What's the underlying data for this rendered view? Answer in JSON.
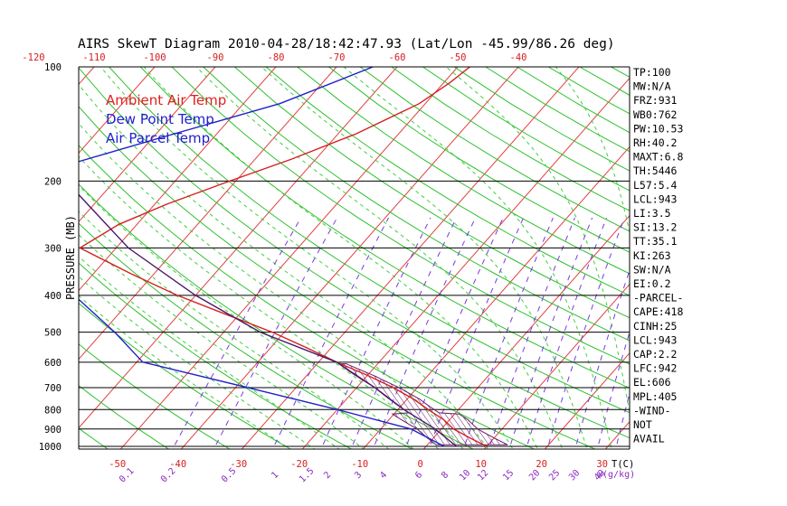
{
  "chart_data": {
    "type": "line",
    "title": "AIRS SkewT Diagram 2010-04-28/18:42:47.93 (Lat/Lon -45.99/86.26 deg)",
    "ylabel": "PRESSURE (MB)",
    "y_scale": "log",
    "ylim": [
      1050,
      100
    ],
    "pressure_ticks": [
      100,
      200,
      300,
      400,
      500,
      600,
      700,
      800,
      900,
      1000
    ],
    "top_temp_ticks": [
      "-120",
      "-110",
      "-100",
      "-90",
      "-80",
      "-70",
      "-60",
      "-50",
      "-40"
    ],
    "bottom_temp_ticks": [
      "-50",
      "-40",
      "-30",
      "-20",
      "-10",
      "0",
      "10",
      "20",
      "30"
    ],
    "bottom_temp_unit": "T(C)",
    "mixing_ratio_ticks": [
      "0.1",
      "0.2",
      "0.5",
      "1",
      "1.5",
      "2",
      "3",
      "4",
      "6",
      "8",
      "10",
      "12",
      "15",
      "20",
      "25",
      "30",
      "40"
    ],
    "mixing_ratio_unit": "w(g/kg)",
    "legend": [
      {
        "name": "Ambient Air Temp",
        "color": "#e02020"
      },
      {
        "name": "Dew Point Temp",
        "color": "#2020d0"
      },
      {
        "name": "Air Parcel Temp",
        "color": "#2020d0"
      }
    ],
    "series": [
      {
        "name": "Ambient Air Temp",
        "color": "#d42020",
        "points": [
          {
            "p": 100,
            "t": -48
          },
          {
            "p": 110,
            "t": -49
          },
          {
            "p": 125,
            "t": -51
          },
          {
            "p": 150,
            "t": -57
          },
          {
            "p": 175,
            "t": -64
          },
          {
            "p": 200,
            "t": -71
          },
          {
            "p": 230,
            "t": -78
          },
          {
            "p": 260,
            "t": -83
          },
          {
            "p": 300,
            "t": -86
          },
          {
            "p": 350,
            "t": -74
          },
          {
            "p": 400,
            "t": -63
          },
          {
            "p": 450,
            "t": -52
          },
          {
            "p": 500,
            "t": -42
          },
          {
            "p": 550,
            "t": -34
          },
          {
            "p": 600,
            "t": -27
          },
          {
            "p": 650,
            "t": -20
          },
          {
            "p": 700,
            "t": -14
          },
          {
            "p": 750,
            "t": -9
          },
          {
            "p": 800,
            "t": -5
          },
          {
            "p": 850,
            "t": -1
          },
          {
            "p": 900,
            "t": 2
          },
          {
            "p": 950,
            "t": 6
          },
          {
            "p": 1000,
            "t": 10
          }
        ]
      },
      {
        "name": "Dew Point Temp",
        "color": "#2020c8",
        "points": [
          {
            "p": 100,
            "t": -64
          },
          {
            "p": 125,
            "t": -74
          },
          {
            "p": 150,
            "t": -87
          },
          {
            "p": 200,
            "t": -107
          },
          {
            "p": 250,
            "t": -103
          },
          {
            "p": 300,
            "t": -95
          },
          {
            "p": 400,
            "t": -80
          },
          {
            "p": 500,
            "t": -68
          },
          {
            "p": 600,
            "t": -59
          },
          {
            "p": 700,
            "t": -38
          },
          {
            "p": 800,
            "t": -20
          },
          {
            "p": 900,
            "t": -5
          },
          {
            "p": 1000,
            "t": 3
          }
        ]
      },
      {
        "name": "Air Parcel Temp",
        "color": "#4a1a6a",
        "points": [
          {
            "p": 100,
            "t": -125
          },
          {
            "p": 150,
            "t": -110
          },
          {
            "p": 200,
            "t": -98
          },
          {
            "p": 250,
            "t": -87
          },
          {
            "p": 300,
            "t": -78
          },
          {
            "p": 400,
            "t": -60
          },
          {
            "p": 500,
            "t": -44
          },
          {
            "p": 600,
            "t": -27
          },
          {
            "p": 700,
            "t": -17
          },
          {
            "p": 800,
            "t": -9
          },
          {
            "p": 900,
            "t": -1
          },
          {
            "p": 1000,
            "t": 5
          }
        ]
      }
    ],
    "indices": [
      "TP:100",
      "MW:N/A",
      "FRZ:931",
      "WB0:762",
      "PW:10.53",
      "RH:40.2",
      "MAXT:6.8",
      "TH:5446",
      "L57:5.4",
      "LCL:943",
      "LI:3.5",
      "SI:13.2",
      "TT:35.1",
      "KI:263",
      "SW:N/A",
      "EI:0.2",
      "-PARCEL-",
      "CAPE:418",
      "CINH:25",
      "LCL:943",
      "CAP:2.2",
      "LFC:942",
      "EL:606",
      "MPL:405",
      "-WIND-",
      "NOT",
      "AVAIL"
    ]
  }
}
